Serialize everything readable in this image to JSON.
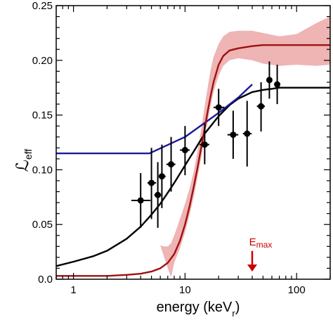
{
  "chart_data": {
    "type": "scatter",
    "title": "",
    "xlabel": "energy (keV",
    "xlabel_sub": "r",
    "xlabel_close": ")",
    "ylabel_main": "ℒ",
    "ylabel_sub": "eff",
    "x_scale": "log",
    "xlim": [
      0.7,
      200
    ],
    "ylim": [
      0.0,
      0.25
    ],
    "x_ticks": [
      {
        "value": 1,
        "label": "1"
      },
      {
        "value": 10,
        "label": "10"
      },
      {
        "value": 100,
        "label": "100"
      }
    ],
    "y_ticks": [
      {
        "value": 0.0,
        "label": "0.0"
      },
      {
        "value": 0.05,
        "label": "0.05"
      },
      {
        "value": 0.1,
        "label": "0.10"
      },
      {
        "value": 0.15,
        "label": "0.15"
      },
      {
        "value": 0.2,
        "label": "0.20"
      },
      {
        "value": 0.25,
        "label": "0.25"
      }
    ],
    "grid": false,
    "points": [
      {
        "x": 4.0,
        "y": 0.072,
        "x_lo": 3.3,
        "x_hi": 4.9,
        "y_lo": 0.047,
        "y_hi": 0.097
      },
      {
        "x": 5.0,
        "y": 0.088,
        "x_lo": 4.6,
        "x_hi": 5.5,
        "y_lo": 0.055,
        "y_hi": 0.12
      },
      {
        "x": 5.7,
        "y": 0.077,
        "x_lo": 5.3,
        "x_hi": 6.1,
        "y_lo": 0.047,
        "y_hi": 0.107
      },
      {
        "x": 6.2,
        "y": 0.094,
        "x_lo": 5.8,
        "x_hi": 6.7,
        "y_lo": 0.065,
        "y_hi": 0.123
      },
      {
        "x": 7.5,
        "y": 0.105,
        "x_lo": 6.8,
        "x_hi": 8.2,
        "y_lo": 0.08,
        "y_hi": 0.13
      },
      {
        "x": 10.0,
        "y": 0.118,
        "x_lo": 9.0,
        "x_hi": 11.0,
        "y_lo": 0.095,
        "y_hi": 0.14
      },
      {
        "x": 15.0,
        "y": 0.123,
        "x_lo": 13.5,
        "x_hi": 16.5,
        "y_lo": 0.105,
        "y_hi": 0.142
      },
      {
        "x": 20.0,
        "y": 0.157,
        "x_lo": 18.0,
        "x_hi": 22.5,
        "y_lo": 0.14,
        "y_hi": 0.174
      },
      {
        "x": 27.0,
        "y": 0.132,
        "x_lo": 24.0,
        "x_hi": 30.0,
        "y_lo": 0.11,
        "y_hi": 0.154
      },
      {
        "x": 36.0,
        "y": 0.133,
        "x_lo": 33.0,
        "x_hi": 39.5,
        "y_lo": 0.103,
        "y_hi": 0.163
      },
      {
        "x": 48.0,
        "y": 0.158,
        "x_lo": 44.0,
        "x_hi": 52.0,
        "y_lo": 0.135,
        "y_hi": 0.18
      },
      {
        "x": 57.0,
        "y": 0.182,
        "x_lo": 54.0,
        "x_hi": 60.0,
        "y_lo": 0.165,
        "y_hi": 0.199
      },
      {
        "x": 67.0,
        "y": 0.178,
        "x_lo": 64.0,
        "x_hi": 71.0,
        "y_lo": 0.16,
        "y_hi": 0.196
      }
    ],
    "series": [
      {
        "color": "#000000",
        "style": "curve",
        "x": [
          0.7,
          1.0,
          1.5,
          2,
          3,
          4,
          5,
          6,
          7,
          8,
          10,
          12,
          15,
          20,
          25,
          30,
          40,
          50,
          60,
          70,
          100,
          150,
          200
        ],
        "y": [
          0.012,
          0.016,
          0.021,
          0.026,
          0.037,
          0.048,
          0.059,
          0.069,
          0.079,
          0.088,
          0.104,
          0.117,
          0.133,
          0.149,
          0.159,
          0.165,
          0.171,
          0.173,
          0.174,
          0.175,
          0.175,
          0.175,
          0.175
        ]
      },
      {
        "color": "#1a1a9a",
        "style": "line",
        "x": [
          0.7,
          4.8,
          10,
          20,
          30,
          40
        ],
        "y": [
          0.115,
          0.115,
          0.13,
          0.152,
          0.166,
          0.178
        ]
      },
      {
        "color": "#a01010",
        "style": "curve",
        "x": [
          0.7,
          1,
          2,
          3,
          4,
          5,
          6,
          7,
          8,
          9,
          10,
          11,
          12,
          13,
          14,
          15,
          16,
          17,
          18,
          20,
          22,
          25,
          30,
          40,
          50,
          70,
          100,
          150,
          200
        ],
        "y": [
          0.003,
          0.003,
          0.003,
          0.004,
          0.005,
          0.007,
          0.01,
          0.015,
          0.023,
          0.035,
          0.05,
          0.067,
          0.085,
          0.103,
          0.121,
          0.138,
          0.154,
          0.168,
          0.18,
          0.196,
          0.204,
          0.209,
          0.211,
          0.213,
          0.214,
          0.214,
          0.214,
          0.214,
          0.214
        ]
      }
    ],
    "band": {
      "color": "#e06a6a",
      "opacity": 0.5,
      "x": [
        6.0,
        6.5,
        7.0,
        7.5,
        8,
        9,
        10,
        11,
        12,
        13,
        14,
        15,
        16,
        17,
        18,
        20,
        22,
        25,
        30,
        40,
        50,
        70,
        100,
        150,
        200
      ],
      "lo": [
        0.031,
        0.02,
        0.01,
        0.002,
        0.015,
        0.028,
        0.043,
        0.059,
        0.076,
        0.094,
        0.112,
        0.129,
        0.145,
        0.159,
        0.171,
        0.186,
        0.195,
        0.2,
        0.202,
        0.2,
        0.197,
        0.195,
        0.196,
        0.195,
        0.196
      ],
      "hi": [
        0.031,
        0.03,
        0.03,
        0.033,
        0.04,
        0.055,
        0.069,
        0.083,
        0.099,
        0.118,
        0.138,
        0.158,
        0.176,
        0.192,
        0.203,
        0.215,
        0.222,
        0.226,
        0.227,
        0.227,
        0.225,
        0.222,
        0.224,
        0.234,
        0.24
      ]
    },
    "annotation": {
      "label_main": "E",
      "label_sub": "max",
      "x": 40,
      "color": "#cc0000",
      "y_top": 0.022,
      "y_bottom": 0.007
    }
  }
}
